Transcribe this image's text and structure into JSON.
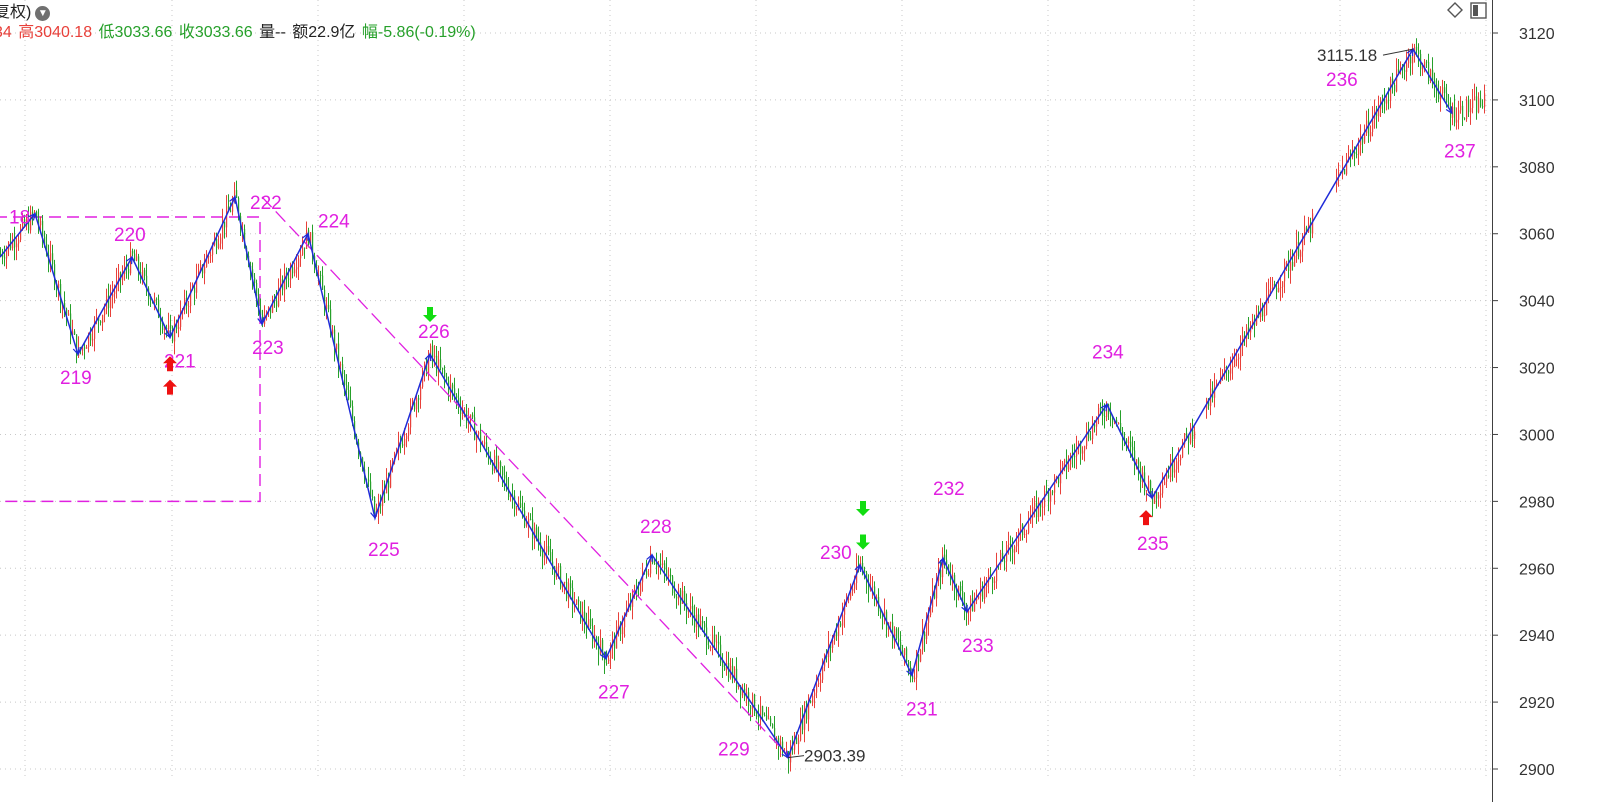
{
  "header": {
    "title_suffix": "复权)",
    "fields": [
      {
        "text": "34",
        "color": "#e8403a"
      },
      {
        "text": "高3040.18",
        "color": "#e8403a"
      },
      {
        "text": "低3033.66",
        "color": "#26a02a"
      },
      {
        "text": "收3033.66",
        "color": "#26a02a"
      },
      {
        "text": "量--",
        "color": "#222222"
      },
      {
        "text": "额22.9亿",
        "color": "#222222"
      },
      {
        "text": "幅-5.86(-0.19%)",
        "color": "#26a02a"
      }
    ]
  },
  "toolbar": {
    "icons": [
      "diamond-icon",
      "panel-toggle-icon"
    ]
  },
  "colors": {
    "up": "#e8403a",
    "down": "#26a02a",
    "wave_line": "#1f2bd8",
    "wave_label": "#e020e0",
    "grid": "#c8c8c8",
    "axis": "#404040"
  },
  "chart_data": {
    "type": "candlestick",
    "title": "",
    "y_axis": {
      "position": "right",
      "ticks": [
        3120,
        3100,
        3080,
        3060,
        3040,
        3020,
        3000,
        2980,
        2960,
        2940,
        2920,
        2900
      ],
      "ylim": [
        2897,
        3129
      ]
    },
    "x_index_range": [
      0,
      1485
    ],
    "grid": true,
    "wave_points": [
      {
        "label": "218",
        "index": 35,
        "price": 3066,
        "label_shown": "18"
      },
      {
        "label": "219",
        "index": 78,
        "price": 3024
      },
      {
        "label": "220",
        "index": 132,
        "price": 3053
      },
      {
        "label": "221",
        "index": 170,
        "price": 3029
      },
      {
        "label": "222",
        "index": 235,
        "price": 3071
      },
      {
        "label": "223",
        "index": 262,
        "price": 3033
      },
      {
        "label": "224",
        "index": 308,
        "price": 3060
      },
      {
        "label": "225",
        "index": 375,
        "price": 2975
      },
      {
        "label": "226",
        "index": 430,
        "price": 3024
      },
      {
        "label": "227",
        "index": 606,
        "price": 2933
      },
      {
        "label": "228",
        "index": 652,
        "price": 2964
      },
      {
        "label": "229",
        "index": 788,
        "price": 2903.39
      },
      {
        "label": "230",
        "index": 860,
        "price": 2961
      },
      {
        "label": "231",
        "index": 912,
        "price": 2928
      },
      {
        "label": "232",
        "index": 943,
        "price": 2963
      },
      {
        "label": "233",
        "index": 967,
        "price": 2947
      },
      {
        "label": "234",
        "index": 1107,
        "price": 3009
      },
      {
        "label": "235",
        "index": 1152,
        "price": 2981
      },
      {
        "label": "236",
        "index": 1413,
        "price": 3115.18
      },
      {
        "label": "237",
        "index": 1452,
        "price": 3096
      }
    ],
    "price_annotations": [
      {
        "text": "2903.39",
        "index": 788,
        "price": 2903.39
      },
      {
        "text": "3115.18",
        "index": 1413,
        "price": 3115.18
      }
    ],
    "signals": [
      {
        "type": "buy",
        "index": 170,
        "price": 3014
      },
      {
        "type": "buy",
        "index": 170,
        "price": 3021
      },
      {
        "type": "sell",
        "index": 430,
        "price": 3036
      },
      {
        "type": "sell",
        "index": 863,
        "price": 2978
      },
      {
        "type": "sell",
        "index": 863,
        "price": 2968
      },
      {
        "type": "buy",
        "index": 1146,
        "price": 2975
      }
    ],
    "rectangle": {
      "x_index": [
        0,
        260
      ],
      "price": [
        3065,
        2980
      ]
    },
    "trend_line": {
      "from": {
        "index": 262,
        "price": 3071
      },
      "to": {
        "index": 790,
        "price": 2903.39
      }
    },
    "labels_text": [
      "18",
      "219",
      "220",
      "221",
      "222",
      "223",
      "224",
      "225",
      "226",
      "227",
      "228",
      "229",
      "230",
      "231",
      "232",
      "233",
      "234",
      "235",
      "236",
      "237"
    ]
  }
}
